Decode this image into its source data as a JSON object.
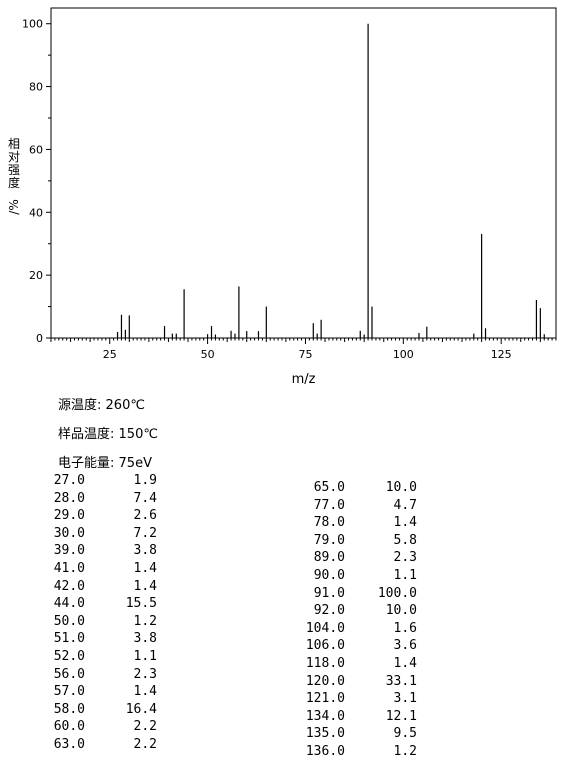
{
  "chart_data": {
    "type": "bar",
    "xlabel": "m/z",
    "ylabel": "相对强度/%",
    "xlim": [
      10,
      139
    ],
    "ylim": [
      0,
      105
    ],
    "xticks": [
      25,
      50,
      75,
      100,
      125
    ],
    "yticks": [
      0,
      20,
      40,
      60,
      80,
      100
    ],
    "peaks": [
      {
        "mz": 27.0,
        "intensity": 1.9
      },
      {
        "mz": 28.0,
        "intensity": 7.4
      },
      {
        "mz": 29.0,
        "intensity": 2.6
      },
      {
        "mz": 30.0,
        "intensity": 7.2
      },
      {
        "mz": 39.0,
        "intensity": 3.8
      },
      {
        "mz": 41.0,
        "intensity": 1.4
      },
      {
        "mz": 42.0,
        "intensity": 1.4
      },
      {
        "mz": 44.0,
        "intensity": 15.5
      },
      {
        "mz": 50.0,
        "intensity": 1.2
      },
      {
        "mz": 51.0,
        "intensity": 3.8
      },
      {
        "mz": 52.0,
        "intensity": 1.1
      },
      {
        "mz": 56.0,
        "intensity": 2.3
      },
      {
        "mz": 57.0,
        "intensity": 1.4
      },
      {
        "mz": 58.0,
        "intensity": 16.4
      },
      {
        "mz": 60.0,
        "intensity": 2.2
      },
      {
        "mz": 63.0,
        "intensity": 2.2
      },
      {
        "mz": 65.0,
        "intensity": 10.0
      },
      {
        "mz": 77.0,
        "intensity": 4.7
      },
      {
        "mz": 78.0,
        "intensity": 1.4
      },
      {
        "mz": 79.0,
        "intensity": 5.8
      },
      {
        "mz": 89.0,
        "intensity": 2.3
      },
      {
        "mz": 90.0,
        "intensity": 1.1
      },
      {
        "mz": 91.0,
        "intensity": 100.0
      },
      {
        "mz": 92.0,
        "intensity": 10.0
      },
      {
        "mz": 104.0,
        "intensity": 1.6
      },
      {
        "mz": 106.0,
        "intensity": 3.6
      },
      {
        "mz": 118.0,
        "intensity": 1.4
      },
      {
        "mz": 120.0,
        "intensity": 33.1
      },
      {
        "mz": 121.0,
        "intensity": 3.1
      },
      {
        "mz": 134.0,
        "intensity": 12.1
      },
      {
        "mz": 135.0,
        "intensity": 9.5
      },
      {
        "mz": 136.0,
        "intensity": 1.2
      }
    ]
  },
  "conditions": [
    {
      "label": "源温度:",
      "value": "260℃"
    },
    {
      "label": "样品温度:",
      "value": "150℃"
    },
    {
      "label": "电子能量:",
      "value": "75eV"
    }
  ],
  "peak_table_left": [
    {
      "mz": "27.0",
      "ab": "1.9"
    },
    {
      "mz": "28.0",
      "ab": "7.4"
    },
    {
      "mz": "29.0",
      "ab": "2.6"
    },
    {
      "mz": "30.0",
      "ab": "7.2"
    },
    {
      "mz": "39.0",
      "ab": "3.8"
    },
    {
      "mz": "41.0",
      "ab": "1.4"
    },
    {
      "mz": "42.0",
      "ab": "1.4"
    },
    {
      "mz": "44.0",
      "ab": "15.5"
    },
    {
      "mz": "50.0",
      "ab": "1.2"
    },
    {
      "mz": "51.0",
      "ab": "3.8"
    },
    {
      "mz": "52.0",
      "ab": "1.1"
    },
    {
      "mz": "56.0",
      "ab": "2.3"
    },
    {
      "mz": "57.0",
      "ab": "1.4"
    },
    {
      "mz": "58.0",
      "ab": "16.4"
    },
    {
      "mz": "60.0",
      "ab": "2.2"
    },
    {
      "mz": "63.0",
      "ab": "2.2"
    }
  ],
  "peak_table_right": [
    {
      "mz": "65.0",
      "ab": "10.0"
    },
    {
      "mz": "77.0",
      "ab": "4.7"
    },
    {
      "mz": "78.0",
      "ab": "1.4"
    },
    {
      "mz": "79.0",
      "ab": "5.8"
    },
    {
      "mz": "89.0",
      "ab": "2.3"
    },
    {
      "mz": "90.0",
      "ab": "1.1"
    },
    {
      "mz": "91.0",
      "ab": "100.0"
    },
    {
      "mz": "92.0",
      "ab": "10.0"
    },
    {
      "mz": "104.0",
      "ab": "1.6"
    },
    {
      "mz": "106.0",
      "ab": "3.6"
    },
    {
      "mz": "118.0",
      "ab": "1.4"
    },
    {
      "mz": "120.0",
      "ab": "33.1"
    },
    {
      "mz": "121.0",
      "ab": "3.1"
    },
    {
      "mz": "134.0",
      "ab": "12.1"
    },
    {
      "mz": "135.0",
      "ab": "9.5"
    },
    {
      "mz": "136.0",
      "ab": "1.2"
    }
  ]
}
